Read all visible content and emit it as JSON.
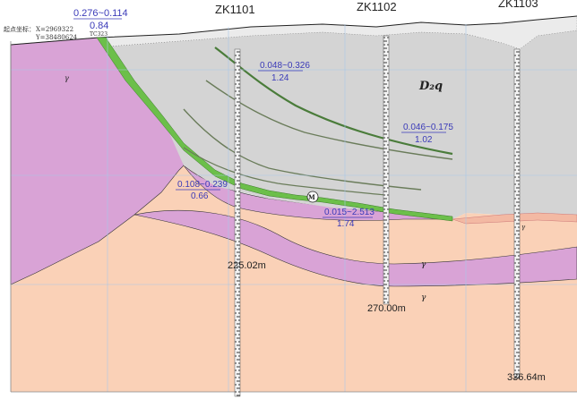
{
  "boreholes": [
    {
      "id": "zk1101",
      "label": "ZK1101"
    },
    {
      "id": "zk1102",
      "label": "ZK1102"
    },
    {
      "id": "zk1103",
      "label": "ZK1103"
    }
  ],
  "origin": {
    "title": "起点坐标：",
    "x": "X=2969322",
    "y": "Y=38480624"
  },
  "header_sample": {
    "top": "0.276~0.114",
    "bottom": "0.84",
    "code": "TC323"
  },
  "formations": {
    "devonian": "D₂q",
    "granite": "γ"
  },
  "depths": [
    {
      "id": "zk1101",
      "label": "225.02m"
    },
    {
      "id": "zk1102",
      "label": "270.00m"
    },
    {
      "id": "zk1103",
      "label": "336.64m"
    }
  ],
  "samples": [
    {
      "id": "s1",
      "range": "0.048~0.326",
      "thickness": "1.24"
    },
    {
      "id": "s2",
      "range": "0.046~0.175",
      "thickness": "1.02"
    },
    {
      "id": "s3",
      "range": "0.108~0.239",
      "thickness": "0.66"
    },
    {
      "id": "s4",
      "range": "0.015~2.513",
      "thickness": "1.74"
    }
  ],
  "ore_body": "M",
  "colors": {
    "limestone": "#d4d4d4",
    "granite_purple": "#d9a3d6",
    "granite_peach": "#fad1b7",
    "ore_green": "#6cbf4a",
    "annotation_blue": "#3a3ab8"
  }
}
